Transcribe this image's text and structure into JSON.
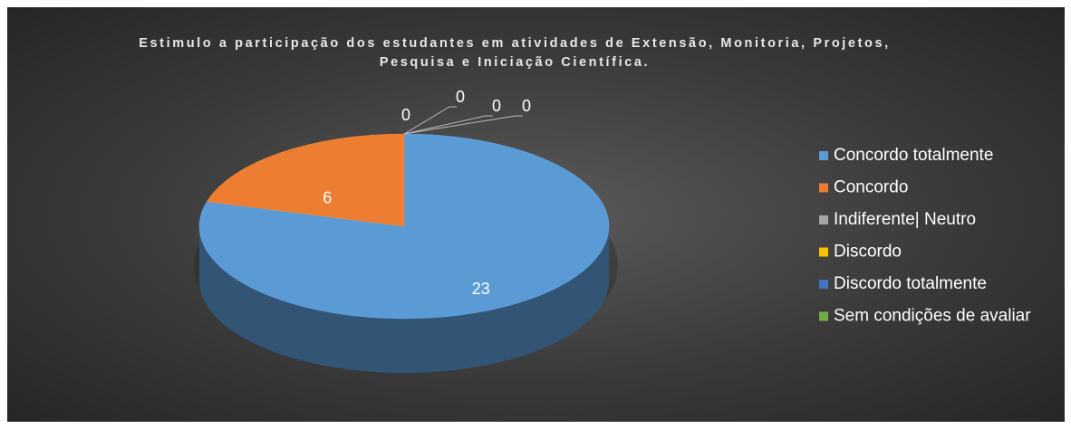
{
  "chart_data": {
    "type": "pie3d",
    "title": "Estimulo a participação dos estudantes em atividades de Extensão, Monitoria, Projetos, Pesquisa e Iniciação Científica.",
    "categories": [
      "Concordo totalmente",
      "Concordo",
      "Indiferente| Neutro",
      "Discordo",
      "Discordo totalmente",
      "Sem condições de avaliar"
    ],
    "values": [
      23,
      6,
      0,
      0,
      0,
      0
    ],
    "colors": [
      "#5b9bd5",
      "#ed7d31",
      "#a5a5a5",
      "#ffc000",
      "#4472c4",
      "#70ad47"
    ],
    "legend": "right"
  }
}
